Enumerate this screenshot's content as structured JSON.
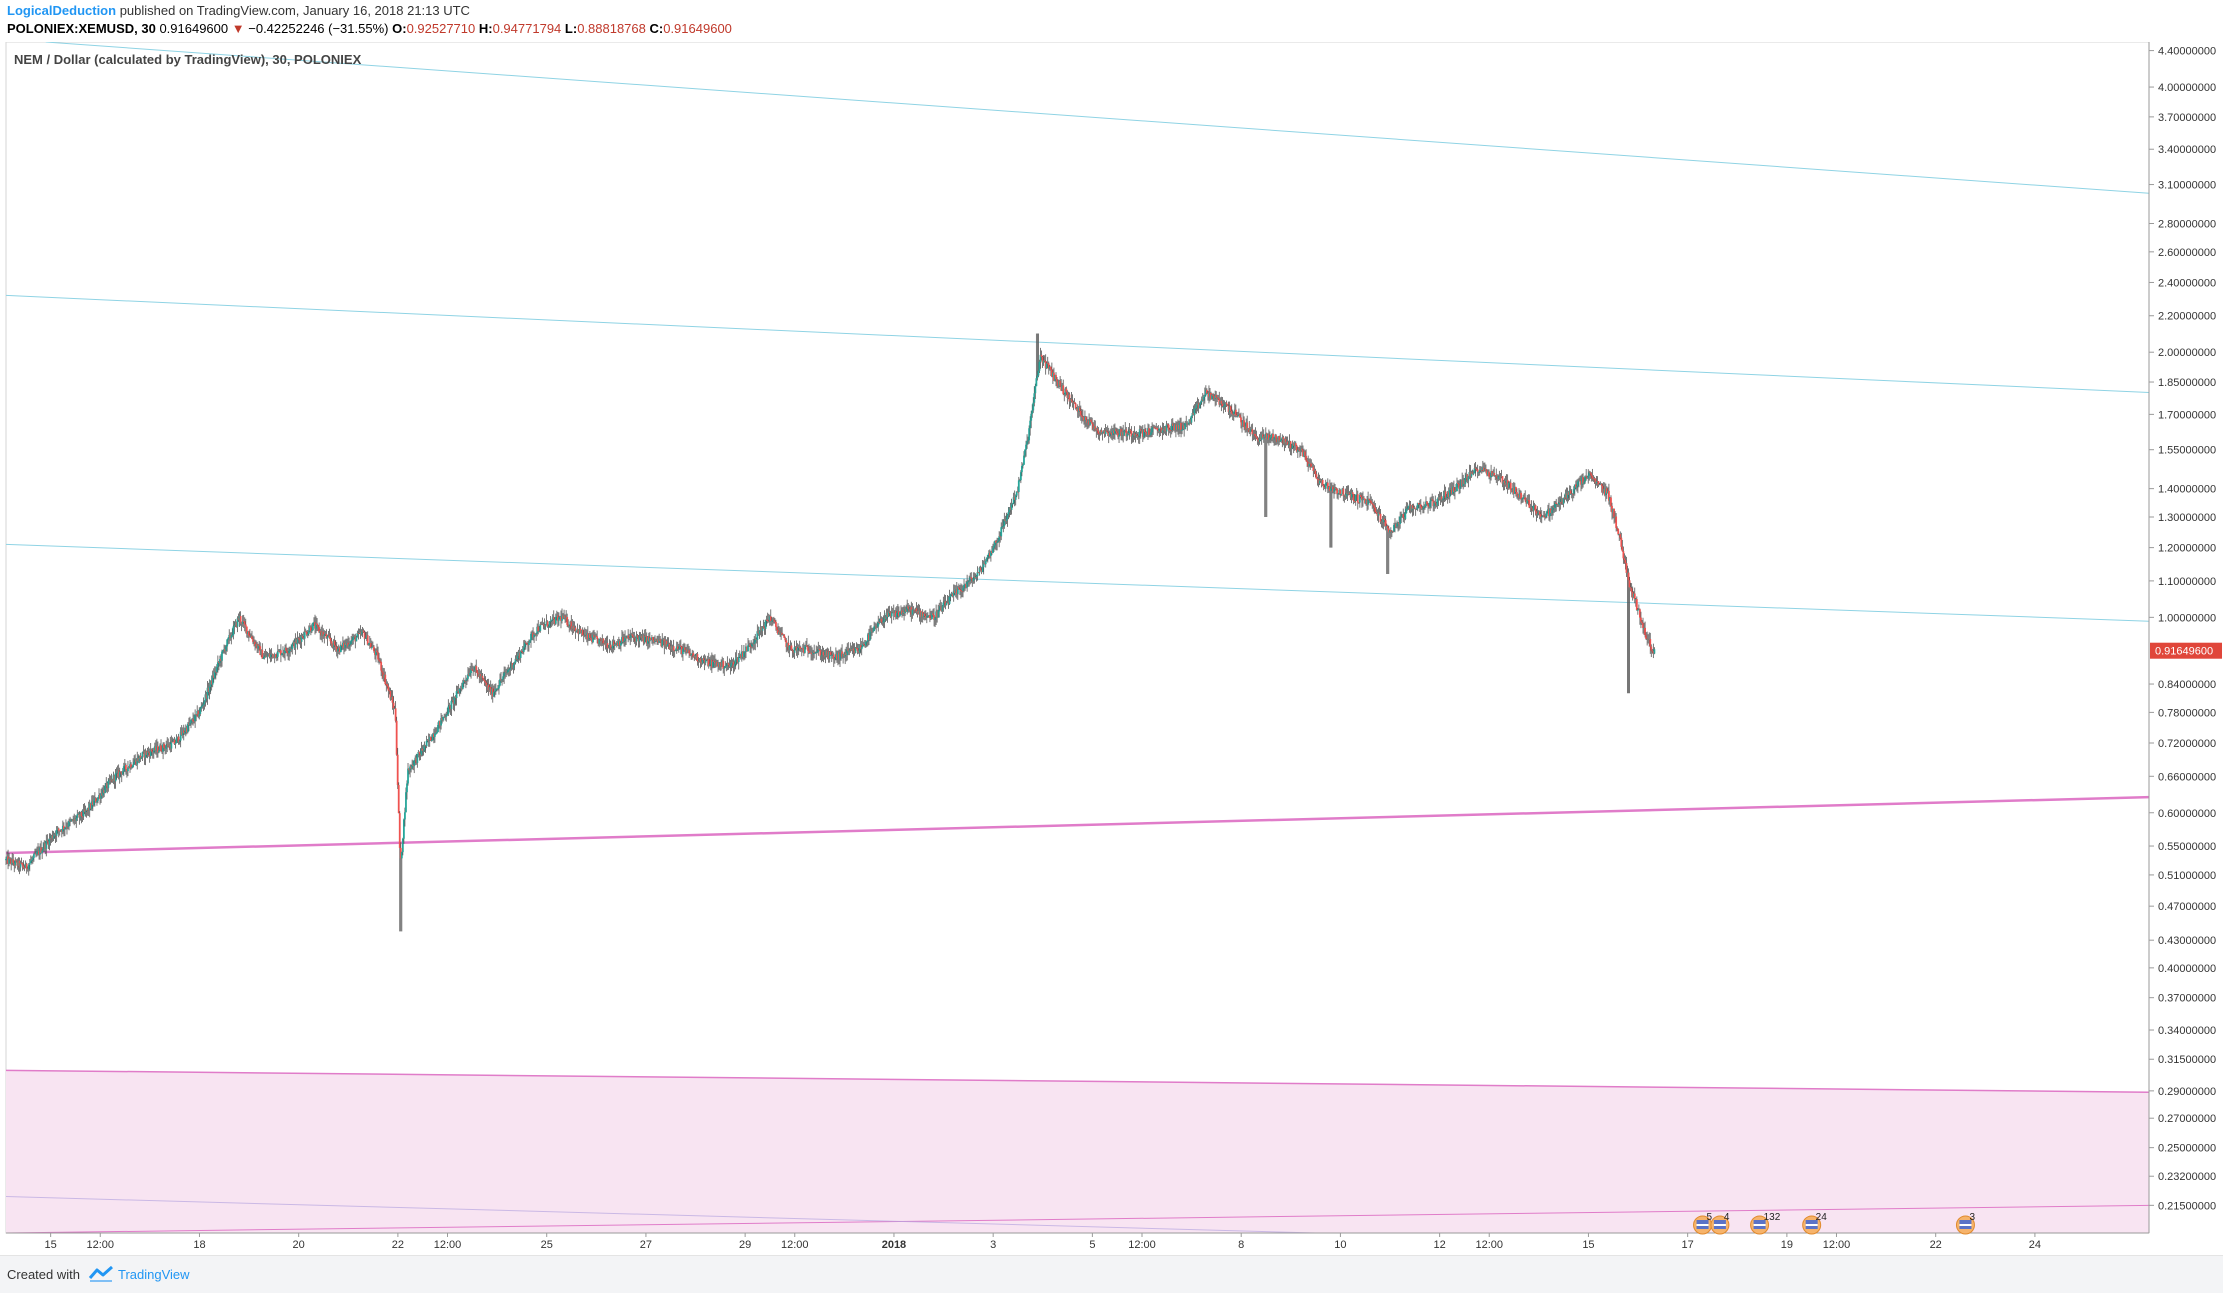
{
  "header": {
    "author": "LogicalDeduction",
    "published": "published on TradingView.com, January 16, 2018 21:13 UTC",
    "symbol": "POLONIEX:XEMUSD, 30",
    "last": "0.91649600",
    "change_arrow": "▼",
    "change": "−0.42252246 (−31.55%)",
    "open_label": "O:",
    "open": "0.92527710",
    "high_label": "H:",
    "high": "0.94771794",
    "low_label": "L:",
    "low": "0.88818768",
    "close_label": "C:",
    "close": "0.91649600"
  },
  "footer": {
    "created": "Created with",
    "brand": "TradingView"
  },
  "colors": {
    "up": "#26a69a",
    "down": "#ef5350",
    "wick": "#555555",
    "channel_teal": "#8fd3e4",
    "channel_pink": "#e07cc9",
    "zone_fill": "#f8e4f2",
    "price_tag": "#e0463a",
    "brand": "#2196f3"
  },
  "chart_data": {
    "type": "candlestick",
    "title": "NEM / Dollar (calculated by TradingView), 30, POLONIEX",
    "ylim": [
      0.2,
      4.5
    ],
    "y_scale": "log",
    "y_ticks": [
      "4.40000000",
      "4.00000000",
      "3.70000000",
      "3.40000000",
      "3.10000000",
      "2.80000000",
      "2.60000000",
      "2.40000000",
      "2.20000000",
      "2.00000000",
      "1.85000000",
      "1.70000000",
      "1.55000000",
      "1.40000000",
      "1.30000000",
      "1.20000000",
      "1.10000000",
      "1.00000000",
      "0.84000000",
      "0.78000000",
      "0.72000000",
      "0.66000000",
      "0.60000000",
      "0.55000000",
      "0.51000000",
      "0.47000000",
      "0.43000000",
      "0.40000000",
      "0.37000000",
      "0.34000000",
      "0.31500000",
      "0.29000000",
      "0.27000000",
      "0.25000000",
      "0.23200000",
      "0.21500000"
    ],
    "x_ticks": [
      {
        "label": "15",
        "x": 15.5
      },
      {
        "label": "12:00",
        "x": 16.5
      },
      {
        "label": "18",
        "x": 18.5
      },
      {
        "label": "20",
        "x": 20.5
      },
      {
        "label": "22",
        "x": 22.5
      },
      {
        "label": "12:00",
        "x": 23.5
      },
      {
        "label": "25",
        "x": 25.5
      },
      {
        "label": "27",
        "x": 27.5
      },
      {
        "label": "29",
        "x": 29.5
      },
      {
        "label": "12:00",
        "x": 30.5
      },
      {
        "label": "2018",
        "x": 32.5,
        "bold": true
      },
      {
        "label": "3",
        "x": 34.5
      },
      {
        "label": "5",
        "x": 36.5
      },
      {
        "label": "12:00",
        "x": 37.5
      },
      {
        "label": "8",
        "x": 39.5
      },
      {
        "label": "10",
        "x": 41.5
      },
      {
        "label": "12",
        "x": 43.5
      },
      {
        "label": "12:00",
        "x": 44.5
      },
      {
        "label": "15",
        "x": 46.5
      },
      {
        "label": "17",
        "x": 48.5
      },
      {
        "label": "19",
        "x": 50.5
      },
      {
        "label": "12:00",
        "x": 51.5
      },
      {
        "label": "22",
        "x": 53.5
      },
      {
        "label": "24",
        "x": 55.5
      }
    ],
    "x_range": [
      14.6,
      57.8
    ],
    "series_anchors": [
      [
        14.6,
        0.53
      ],
      [
        15.0,
        0.52
      ],
      [
        15.6,
        0.57
      ],
      [
        16.2,
        0.6
      ],
      [
        16.8,
        0.66
      ],
      [
        17.4,
        0.7
      ],
      [
        18.0,
        0.72
      ],
      [
        18.5,
        0.78
      ],
      [
        19.0,
        0.92
      ],
      [
        19.3,
        1.0
      ],
      [
        19.8,
        0.9
      ],
      [
        20.3,
        0.92
      ],
      [
        20.8,
        0.98
      ],
      [
        21.3,
        0.92
      ],
      [
        21.8,
        0.96
      ],
      [
        22.1,
        0.9
      ],
      [
        22.45,
        0.78
      ],
      [
        22.55,
        0.52
      ],
      [
        22.7,
        0.67
      ],
      [
        23.1,
        0.72
      ],
      [
        23.6,
        0.8
      ],
      [
        24.0,
        0.88
      ],
      [
        24.4,
        0.82
      ],
      [
        24.9,
        0.9
      ],
      [
        25.3,
        0.97
      ],
      [
        25.8,
        1.0
      ],
      [
        26.3,
        0.95
      ],
      [
        26.8,
        0.93
      ],
      [
        27.2,
        0.95
      ],
      [
        27.7,
        0.94
      ],
      [
        28.2,
        0.92
      ],
      [
        28.7,
        0.89
      ],
      [
        29.2,
        0.88
      ],
      [
        29.6,
        0.93
      ],
      [
        30.0,
        1.0
      ],
      [
        30.4,
        0.92
      ],
      [
        30.8,
        0.92
      ],
      [
        31.3,
        0.9
      ],
      [
        31.8,
        0.92
      ],
      [
        32.3,
        1.0
      ],
      [
        32.8,
        1.02
      ],
      [
        33.3,
        1.0
      ],
      [
        33.7,
        1.06
      ],
      [
        34.2,
        1.12
      ],
      [
        34.6,
        1.23
      ],
      [
        35.0,
        1.4
      ],
      [
        35.2,
        1.6
      ],
      [
        35.45,
        1.98
      ],
      [
        35.8,
        1.85
      ],
      [
        36.2,
        1.72
      ],
      [
        36.6,
        1.63
      ],
      [
        37.0,
        1.62
      ],
      [
        37.5,
        1.62
      ],
      [
        38.0,
        1.64
      ],
      [
        38.4,
        1.65
      ],
      [
        38.8,
        1.8
      ],
      [
        39.3,
        1.72
      ],
      [
        39.8,
        1.6
      ],
      [
        40.2,
        1.6
      ],
      [
        40.7,
        1.55
      ],
      [
        41.1,
        1.42
      ],
      [
        41.6,
        1.38
      ],
      [
        42.1,
        1.35
      ],
      [
        42.5,
        1.25
      ],
      [
        42.9,
        1.33
      ],
      [
        43.4,
        1.35
      ],
      [
        43.8,
        1.4
      ],
      [
        44.3,
        1.48
      ],
      [
        44.8,
        1.43
      ],
      [
        45.2,
        1.36
      ],
      [
        45.6,
        1.3
      ],
      [
        46.1,
        1.38
      ],
      [
        46.5,
        1.45
      ],
      [
        46.9,
        1.38
      ],
      [
        47.1,
        1.25
      ],
      [
        47.35,
        1.08
      ],
      [
        47.55,
        1.0
      ],
      [
        47.7,
        0.94
      ],
      [
        47.85,
        0.91
      ]
    ],
    "lines": [
      {
        "name": "teal-channel-top",
        "from": [
          15.4,
          4.5
        ],
        "to": [
          57.8,
          3.03
        ]
      },
      {
        "name": "teal-channel-mid",
        "from": [
          14.6,
          2.32
        ],
        "to": [
          57.8,
          1.8
        ]
      },
      {
        "name": "teal-channel-low",
        "from": [
          14.6,
          1.21
        ],
        "to": [
          57.8,
          0.99
        ]
      },
      {
        "name": "pink-support",
        "from": [
          14.6,
          0.54
        ],
        "to": [
          57.8,
          0.625
        ]
      },
      {
        "name": "pink-zone-top",
        "from": [
          14.6,
          0.306
        ],
        "to": [
          57.8,
          0.289
        ]
      },
      {
        "name": "pink-low-ray",
        "from": [
          14.6,
          0.2
        ],
        "to": [
          57.8,
          0.215
        ]
      },
      {
        "name": "faint-diag",
        "from": [
          14.6,
          0.22
        ],
        "to": [
          41.0,
          0.2
        ]
      }
    ],
    "events": [
      {
        "label": "5",
        "x": 48.8
      },
      {
        "label": "4",
        "x": 49.15
      },
      {
        "label": "132",
        "x": 49.95
      },
      {
        "label": "24",
        "x": 51.0
      },
      {
        "label": "3",
        "x": 54.1
      }
    ],
    "last_price": "0.91649600",
    "last_value": 0.916496
  }
}
